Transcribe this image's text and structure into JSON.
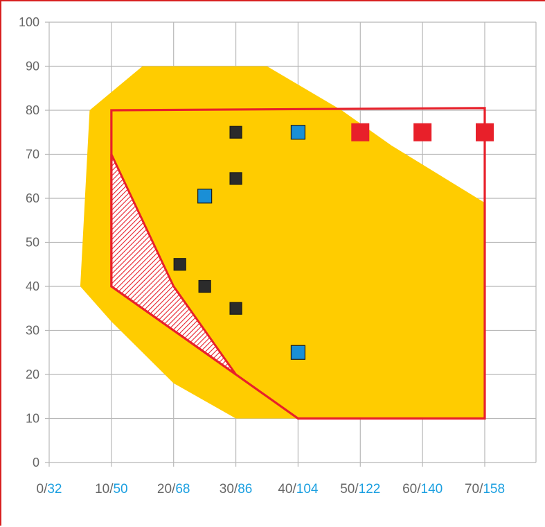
{
  "chart_data": {
    "type": "scatter",
    "title": "",
    "xlabel": "",
    "ylabel": "",
    "xlim": [
      0,
      70
    ],
    "ylim": [
      0,
      100
    ],
    "x_ticks": [
      {
        "value": 0,
        "label_main": "0/",
        "label_alt": "32"
      },
      {
        "value": 10,
        "label_main": "10/",
        "label_alt": "50"
      },
      {
        "value": 20,
        "label_main": "20/",
        "label_alt": "68"
      },
      {
        "value": 30,
        "label_main": "30/",
        "label_alt": "86"
      },
      {
        "value": 40,
        "label_main": "40/",
        "label_alt": "104"
      },
      {
        "value": 50,
        "label_main": "50/",
        "label_alt": "122"
      },
      {
        "value": 60,
        "label_main": "60/",
        "label_alt": "140"
      },
      {
        "value": 70,
        "label_main": "70/",
        "label_alt": "158"
      }
    ],
    "y_ticks": [
      {
        "value": 0,
        "label": "0"
      },
      {
        "value": 10,
        "label": "10"
      },
      {
        "value": 20,
        "label": "20"
      },
      {
        "value": 30,
        "label": "30"
      },
      {
        "value": 40,
        "label": "40"
      },
      {
        "value": 50,
        "label": "50"
      },
      {
        "value": 60,
        "label": "60"
      },
      {
        "value": 70,
        "label": "70"
      },
      {
        "value": 80,
        "label": "80"
      },
      {
        "value": 90,
        "label": "90"
      },
      {
        "value": 100,
        "label": "100"
      }
    ],
    "grid": true,
    "regions": [
      {
        "kind": "filled-area",
        "color": "#ffcc00",
        "points": [
          [
            5,
            40
          ],
          [
            6.5,
            80
          ],
          [
            15,
            90
          ],
          [
            35,
            90
          ],
          [
            47,
            80
          ],
          [
            55,
            72
          ],
          [
            70,
            59
          ],
          [
            70,
            10
          ],
          [
            40,
            10
          ],
          [
            30,
            10
          ],
          [
            20,
            18
          ],
          [
            10,
            32
          ]
        ]
      },
      {
        "kind": "hatched-area",
        "color": "#e8202a",
        "points": [
          [
            10,
            70
          ],
          [
            10,
            40
          ],
          [
            30,
            20
          ],
          [
            20,
            40
          ]
        ]
      },
      {
        "kind": "outline",
        "color": "#e8202a",
        "points": [
          [
            10,
            80
          ],
          [
            70,
            80.5
          ],
          [
            70,
            10
          ],
          [
            40,
            10
          ],
          [
            10,
            40
          ]
        ]
      }
    ],
    "series": [
      {
        "color": "#2b2b2b",
        "marker": "square-small",
        "points": [
          [
            30,
            75
          ],
          [
            30,
            64.5
          ],
          [
            21,
            45
          ],
          [
            25,
            40
          ],
          [
            30,
            35
          ]
        ]
      },
      {
        "color": "#1a8fd6",
        "marker": "square-medium",
        "points": [
          [
            40,
            75
          ],
          [
            25,
            60.5
          ],
          [
            40,
            25
          ]
        ]
      },
      {
        "color": "#e8202a",
        "marker": "square-large",
        "points": [
          [
            50,
            75
          ],
          [
            60,
            75
          ],
          [
            70,
            75
          ]
        ]
      }
    ],
    "colors": {
      "axis_alt_label": "#1a9fe0",
      "axis_main_label": "#666666"
    }
  }
}
